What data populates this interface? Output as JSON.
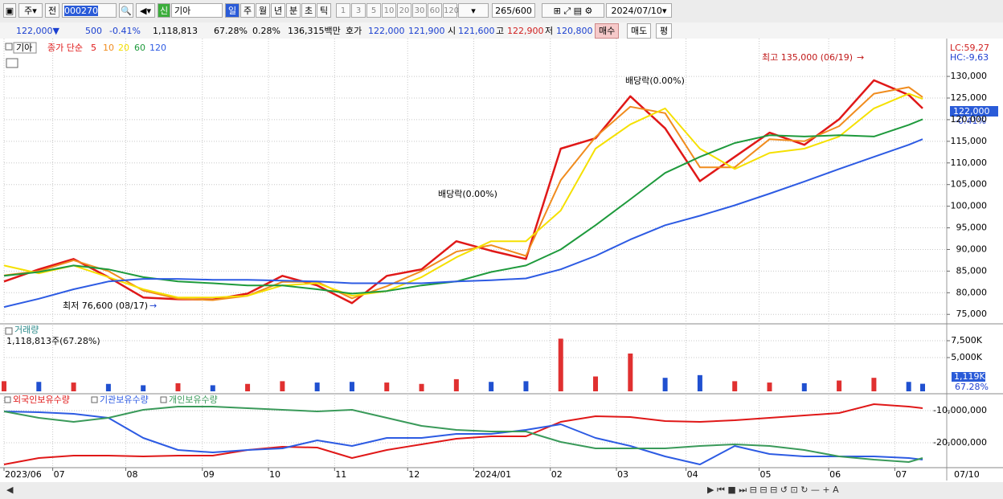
{
  "toolbar": {
    "market": "주",
    "prev": "전",
    "code": "000270",
    "badge": "신",
    "name": "기아",
    "periods": [
      "일",
      "주",
      "월",
      "년",
      "분",
      "초",
      "틱"
    ],
    "intervals": [
      "1",
      "3",
      "5",
      "10",
      "20",
      "30",
      "60",
      "120"
    ],
    "count": 265,
    "max": "/600",
    "date": "2024/07/10"
  },
  "info_bar": {
    "price": "122,000▼",
    "change": 500,
    "rate": "-0.41%",
    "volume": "1,118,813",
    "volume_rate": "67.28%",
    "turnover": "0.28%",
    "amount": "136,315백만",
    "quote_label": "호가",
    "ask": "122,000",
    "bid": "121,900",
    "open_label": "시",
    "open": "121,600",
    "high_label": "고",
    "high": "122,900",
    "low_label": "저",
    "low": "120,800",
    "buy": "매수",
    "sell": "매도",
    "avg": "평"
  },
  "chart_data": [
    {
      "type": "line",
      "name": "기아",
      "legend_label": "종가 단순",
      "lc": "LC:59,27",
      "hc": "HC:-9,63",
      "last_price": "122,000",
      "last_rate": "-0.41%",
      "high_note": "최고 135,000 (06/19)",
      "low_note": "최저 76,600 (08/17)",
      "ex_dividend": [
        "배당락(0.00%)",
        "배당락(0.00%)"
      ],
      "x": [
        0,
        10,
        20,
        30,
        40,
        50,
        60,
        70,
        80,
        90,
        100,
        110,
        120,
        130,
        140,
        150,
        160,
        170,
        180,
        190,
        200,
        210,
        220,
        230,
        240,
        250,
        260,
        264
      ],
      "xlim": [
        0,
        264
      ],
      "ylim": [
        73000,
        138000
      ],
      "yticks": [
        {
          "value": 75000,
          "label": "75,000"
        },
        {
          "value": 80000,
          "label": "80,000"
        },
        {
          "value": 85000,
          "label": "85,000"
        },
        {
          "value": 90000,
          "label": "90,000"
        },
        {
          "value": 95000,
          "label": "95,000"
        },
        {
          "value": 100000,
          "label": "100,000"
        },
        {
          "value": 105000,
          "label": "105,000"
        },
        {
          "value": 110000,
          "label": "110,000"
        },
        {
          "value": 115000,
          "label": "115,000"
        },
        {
          "value": 120000,
          "label": "120,000"
        },
        {
          "value": 125000,
          "label": "125,000"
        },
        {
          "value": 130000,
          "label": "130,000"
        }
      ],
      "series": [
        {
          "name": "5",
          "color": "#e01818",
          "values": [
            82600,
            85400,
            87800,
            83600,
            78900,
            78500,
            78400,
            79800,
            83900,
            81700,
            77600,
            83900,
            85400,
            91900,
            89700,
            87800,
            113300,
            115700,
            125400,
            118000,
            105800,
            111400,
            117000,
            114200,
            120100,
            129100,
            125700,
            122600
          ]
        },
        {
          "name": "10",
          "color": "#f08c1e",
          "values": [
            84000,
            85000,
            87500,
            85000,
            80500,
            78600,
            78300,
            79300,
            82500,
            82500,
            78700,
            81500,
            85000,
            89500,
            91000,
            88500,
            106000,
            116000,
            123000,
            121500,
            109000,
            109000,
            115500,
            115000,
            118500,
            126000,
            127500,
            125200
          ]
        },
        {
          "name": "20",
          "color": "#f5e000",
          "values": [
            86300,
            84500,
            86300,
            83600,
            80800,
            78900,
            78900,
            79300,
            81700,
            82200,
            79300,
            80400,
            83600,
            88200,
            91900,
            91900,
            99000,
            113300,
            118900,
            122600,
            113300,
            108600,
            112300,
            113300,
            116100,
            122600,
            126000,
            124800
          ]
        },
        {
          "name": "60",
          "color": "#1e9a3c",
          "values": [
            83900,
            84800,
            86300,
            85400,
            83600,
            82600,
            82200,
            81700,
            81700,
            80800,
            79800,
            80400,
            81700,
            82600,
            84800,
            86300,
            90000,
            95600,
            101600,
            107700,
            111400,
            114600,
            116400,
            116100,
            116400,
            116100,
            118800,
            120100
          ]
        },
        {
          "name": "120",
          "color": "#2d5be3",
          "values": [
            76700,
            78600,
            80800,
            82600,
            83200,
            83200,
            83000,
            83000,
            82800,
            82600,
            82200,
            82200,
            82200,
            82600,
            82900,
            83300,
            85400,
            88500,
            92300,
            95600,
            97800,
            100200,
            102900,
            105700,
            108600,
            111400,
            114200,
            115500
          ]
        }
      ]
    },
    {
      "type": "bar",
      "title": "거래량",
      "subtitle": "1,118,813주(67.28%)",
      "current_value": 1119,
      "current_label": "1,119K",
      "current_rate": "67.28%",
      "x": [
        0,
        10,
        20,
        30,
        40,
        50,
        60,
        70,
        80,
        90,
        100,
        110,
        120,
        130,
        140,
        150,
        160,
        170,
        180,
        190,
        200,
        210,
        220,
        230,
        240,
        250,
        260,
        264
      ],
      "xlim": [
        0,
        264
      ],
      "ylim": [
        0,
        9760
      ],
      "yticks": [
        {
          "value": 5000,
          "label": "5,000K"
        },
        {
          "value": 7500,
          "label": "7,500K"
        }
      ],
      "values": [
        1500,
        1400,
        1300,
        1100,
        900,
        1200,
        900,
        1100,
        1500,
        1300,
        1400,
        1300,
        1100,
        1800,
        1400,
        1500,
        7800,
        2200,
        5600,
        2000,
        2400,
        1500,
        1300,
        1200,
        1600,
        2000,
        1400,
        1119
      ],
      "colors": [
        "#e03030",
        "#2050d0",
        "#e03030",
        "#2050d0",
        "#2050d0",
        "#e03030",
        "#2050d0",
        "#e03030",
        "#e03030",
        "#2050d0",
        "#2050d0",
        "#e03030",
        "#e03030",
        "#e03030",
        "#2050d0",
        "#2050d0",
        "#e03030",
        "#e03030",
        "#e03030",
        "#2050d0",
        "#2050d0",
        "#e03030",
        "#e03030",
        "#2050d0",
        "#e03030",
        "#e03030",
        "#2050d0",
        "#2050d0"
      ]
    },
    {
      "type": "line",
      "x": [
        0,
        10,
        20,
        30,
        40,
        50,
        60,
        70,
        80,
        90,
        100,
        110,
        120,
        130,
        140,
        150,
        160,
        170,
        180,
        190,
        200,
        210,
        220,
        230,
        240,
        250,
        260,
        264
      ],
      "xlim": [
        0,
        264
      ],
      "ylim": [
        -27250000,
        -5250000
      ],
      "yticks": [
        {
          "value": -10000000,
          "label": "-10,000,000"
        },
        {
          "value": -20000000,
          "label": "-20,000,000"
        }
      ],
      "xticks": [
        {
          "value": 0,
          "label": "2023/06"
        },
        {
          "value": 14,
          "label": "07"
        },
        {
          "value": 35,
          "label": "08"
        },
        {
          "value": 57,
          "label": "09"
        },
        {
          "value": 76,
          "label": "10"
        },
        {
          "value": 95,
          "label": "11"
        },
        {
          "value": 116,
          "label": "12"
        },
        {
          "value": 135,
          "label": "2024/01"
        },
        {
          "value": 157,
          "label": "02"
        },
        {
          "value": 176,
          "label": "03"
        },
        {
          "value": 196,
          "label": "04"
        },
        {
          "value": 217,
          "label": "05"
        },
        {
          "value": 237,
          "label": "06"
        },
        {
          "value": 256,
          "label": "07"
        }
      ],
      "end_label": "07/10",
      "series": [
        {
          "name": "외국인보유수량",
          "color": "#e01818",
          "values": [
            -26750000,
            -24750000,
            -24000000,
            -24000000,
            -24250000,
            -24000000,
            -24000000,
            -22250000,
            -21250000,
            -21500000,
            -24750000,
            -22250000,
            -20500000,
            -18750000,
            -18000000,
            -18000000,
            -13500000,
            -11750000,
            -12000000,
            -13250000,
            -13500000,
            -13000000,
            -12250000,
            -11500000,
            -10750000,
            -8000000,
            -8750000,
            -9250000
          ]
        },
        {
          "name": "기관보유수량",
          "color": "#2d5be3",
          "values": [
            -10250000,
            -10500000,
            -11000000,
            -12250000,
            -18500000,
            -22250000,
            -23000000,
            -22250000,
            -21750000,
            -19250000,
            -21000000,
            -18500000,
            -18500000,
            -17250000,
            -17250000,
            -16000000,
            -14250000,
            -18500000,
            -21000000,
            -24250000,
            -26750000,
            -21000000,
            -23500000,
            -24250000,
            -24250000,
            -24250000,
            -24750000,
            -25250000
          ]
        },
        {
          "name": "개인보유수량",
          "color": "#3a9a5a",
          "values": [
            -10250000,
            -12250000,
            -13500000,
            -12250000,
            -9750000,
            -8750000,
            -8750000,
            -9250000,
            -9750000,
            -10250000,
            -9750000,
            -12250000,
            -14750000,
            -16000000,
            -16500000,
            -16500000,
            -19750000,
            -21750000,
            -21750000,
            -21750000,
            -21000000,
            -20500000,
            -21000000,
            -22250000,
            -24250000,
            -25250000,
            -26000000,
            -24750000
          ]
        }
      ]
    }
  ]
}
